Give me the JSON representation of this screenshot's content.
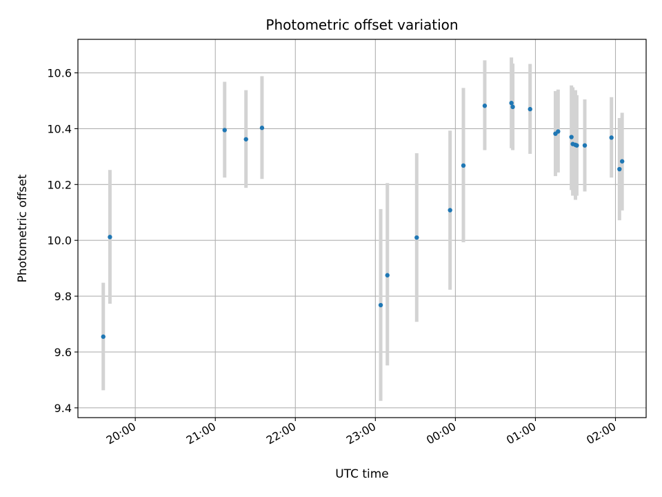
{
  "chart_data": {
    "type": "scatter",
    "title": "Photometric offset variation",
    "xlabel": "UTC time",
    "ylabel": "Photometric offset",
    "x_tick_labels": [
      "20:00",
      "21:00",
      "22:00",
      "23:00",
      "00:00",
      "01:00",
      "02:00"
    ],
    "y_ticks": [
      9.4,
      9.6,
      9.8,
      10.0,
      10.2,
      10.4,
      10.6
    ],
    "y_tick_labels": [
      "9.4",
      "9.6",
      "9.8",
      "10.0",
      "10.2",
      "10.4",
      "10.6"
    ],
    "xlim": [
      "19:17",
      "26:23"
    ],
    "ylim": [
      9.365,
      10.72
    ],
    "grid": true,
    "marker_color": "#1f77b4",
    "errorbar_color": "#d3d3d3",
    "points": [
      {
        "x": "19:36",
        "y": 9.655,
        "ylow": 9.463,
        "yhigh": 9.848
      },
      {
        "x": "19:41",
        "y": 10.012,
        "ylow": 9.773,
        "yhigh": 10.252
      },
      {
        "x": "21:07",
        "y": 10.395,
        "ylow": 10.225,
        "yhigh": 10.568
      },
      {
        "x": "21:23",
        "y": 10.362,
        "ylow": 10.188,
        "yhigh": 10.538
      },
      {
        "x": "21:35",
        "y": 10.403,
        "ylow": 10.22,
        "yhigh": 10.588
      },
      {
        "x": "23:04",
        "y": 9.768,
        "ylow": 9.425,
        "yhigh": 10.112
      },
      {
        "x": "23:09",
        "y": 9.875,
        "ylow": 9.552,
        "yhigh": 10.205
      },
      {
        "x": "23:31",
        "y": 10.01,
        "ylow": 9.708,
        "yhigh": 10.312
      },
      {
        "x": "23:56",
        "y": 10.108,
        "ylow": 9.823,
        "yhigh": 10.393
      },
      {
        "x": "24:06",
        "y": 10.268,
        "ylow": 9.993,
        "yhigh": 10.546
      },
      {
        "x": "24:22",
        "y": 10.482,
        "ylow": 10.323,
        "yhigh": 10.645
      },
      {
        "x": "24:42",
        "y": 10.492,
        "ylow": 10.33,
        "yhigh": 10.655
      },
      {
        "x": "24:43",
        "y": 10.478,
        "ylow": 10.323,
        "yhigh": 10.633
      },
      {
        "x": "24:56",
        "y": 10.47,
        "ylow": 10.31,
        "yhigh": 10.632
      },
      {
        "x": "25:15",
        "y": 10.382,
        "ylow": 10.23,
        "yhigh": 10.535
      },
      {
        "x": "25:17",
        "y": 10.39,
        "ylow": 10.243,
        "yhigh": 10.54
      },
      {
        "x": "25:27",
        "y": 10.37,
        "ylow": 10.18,
        "yhigh": 10.555
      },
      {
        "x": "25:28",
        "y": 10.345,
        "ylow": 10.16,
        "yhigh": 10.548
      },
      {
        "x": "25:30",
        "y": 10.342,
        "ylow": 10.145,
        "yhigh": 10.538
      },
      {
        "x": "25:31",
        "y": 10.34,
        "ylow": 10.16,
        "yhigh": 10.52
      },
      {
        "x": "25:37",
        "y": 10.34,
        "ylow": 10.175,
        "yhigh": 10.505
      },
      {
        "x": "25:57",
        "y": 10.368,
        "ylow": 10.225,
        "yhigh": 10.513
      },
      {
        "x": "26:03",
        "y": 10.255,
        "ylow": 10.072,
        "yhigh": 10.438
      },
      {
        "x": "26:05",
        "y": 10.283,
        "ylow": 10.107,
        "yhigh": 10.457
      }
    ]
  }
}
